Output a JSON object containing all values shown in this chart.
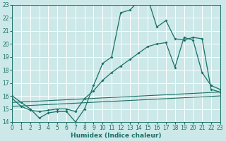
{
  "bg_color": "#cce8e8",
  "grid_color": "#b8d8d8",
  "line_color": "#1a7068",
  "xlabel": "Humidex (Indice chaleur)",
  "xlim": [
    0,
    23
  ],
  "ylim": [
    14,
    23
  ],
  "yticks": [
    14,
    15,
    16,
    17,
    18,
    19,
    20,
    21,
    22,
    23
  ],
  "xticks": [
    0,
    1,
    2,
    3,
    4,
    5,
    6,
    7,
    8,
    9,
    10,
    11,
    12,
    13,
    14,
    15,
    16,
    17,
    18,
    19,
    20,
    21,
    22,
    23
  ],
  "line1_x": [
    0,
    1,
    2,
    3,
    4,
    5,
    6,
    7,
    8,
    9,
    10,
    11,
    12,
    13,
    14,
    15,
    16,
    17,
    18,
    19,
    20,
    21,
    22,
    23
  ],
  "line1_y": [
    16.0,
    15.5,
    15.0,
    14.3,
    14.7,
    14.8,
    14.8,
    14.0,
    15.0,
    16.8,
    18.5,
    19.0,
    22.4,
    22.6,
    23.3,
    23.5,
    21.3,
    21.8,
    20.4,
    20.3,
    20.5,
    20.4,
    16.5,
    16.3
  ],
  "line2_x": [
    0,
    1,
    2,
    3,
    4,
    5,
    6,
    7,
    8,
    9,
    10,
    11,
    12,
    13,
    14,
    15,
    16,
    17,
    18,
    19,
    20,
    21,
    22,
    23
  ],
  "line2_y": [
    15.8,
    15.2,
    14.9,
    14.8,
    14.9,
    15.0,
    15.0,
    14.8,
    15.8,
    16.4,
    17.2,
    17.8,
    18.3,
    18.8,
    19.3,
    19.8,
    20.0,
    20.1,
    18.2,
    20.5,
    20.3,
    17.8,
    16.8,
    16.5
  ],
  "line3_x": [
    0,
    23
  ],
  "line3_y": [
    15.5,
    16.3
  ],
  "line4_x": [
    0,
    23
  ],
  "line4_y": [
    15.2,
    16.0
  ]
}
